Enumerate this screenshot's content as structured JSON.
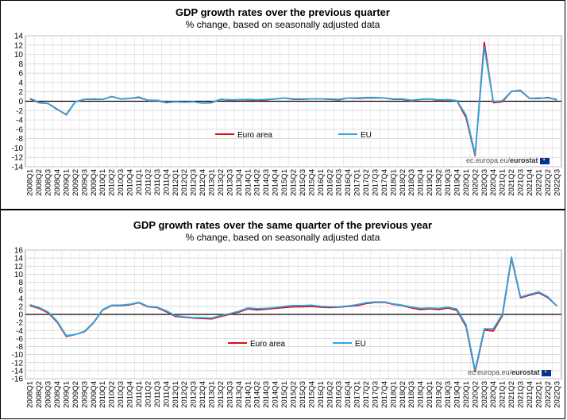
{
  "chart_data": [
    {
      "type": "line",
      "title": "GDP growth rates over the previous quarter",
      "subtitle": "% change, based on seasonally adjusted data",
      "ylim": [
        -14,
        14
      ],
      "yticks": [
        -14,
        -12,
        -10,
        -8,
        -6,
        -4,
        -2,
        0,
        2,
        4,
        6,
        8,
        10,
        12,
        14
      ],
      "grid": true,
      "legend_position": "center",
      "credit": "ec.europa.eu/",
      "credit_bold": "eurostat",
      "categories": [
        "2008Q1",
        "2008Q2",
        "2008Q3",
        "2008Q4",
        "2009Q1",
        "2009Q2",
        "2009Q3",
        "2009Q4",
        "2010Q1",
        "2010Q2",
        "2010Q3",
        "2010Q4",
        "2011Q1",
        "2011Q2",
        "2011Q3",
        "2011Q4",
        "2012Q1",
        "2012Q2",
        "2012Q3",
        "2012Q4",
        "2013Q1",
        "2013Q2",
        "2013Q3",
        "2013Q4",
        "2014Q1",
        "2014Q2",
        "2014Q3",
        "2014Q4",
        "2015Q1",
        "2015Q2",
        "2015Q3",
        "2015Q4",
        "2016Q1",
        "2016Q2",
        "2016Q3",
        "2016Q4",
        "2017Q1",
        "2017Q2",
        "2017Q3",
        "2017Q4",
        "2018Q1",
        "2018Q2",
        "2018Q3",
        "2018Q4",
        "2019Q1",
        "2019Q2",
        "2019Q3",
        "2019Q4",
        "2020Q1",
        "2020Q2",
        "2020Q3",
        "2020Q4",
        "2021Q1",
        "2021Q2",
        "2021Q3",
        "2021Q4",
        "2022Q1",
        "2022Q2",
        "2022Q3"
      ],
      "series": [
        {
          "name": "Euro area",
          "color": "#e30613",
          "values": [
            0.5,
            -0.3,
            -0.5,
            -1.7,
            -2.9,
            -0.1,
            0.4,
            0.4,
            0.4,
            1.0,
            0.5,
            0.6,
            0.8,
            0.2,
            0.1,
            -0.3,
            -0.1,
            -0.2,
            -0.1,
            -0.4,
            -0.3,
            0.4,
            0.2,
            0.3,
            0.3,
            0.2,
            0.3,
            0.5,
            0.7,
            0.4,
            0.4,
            0.5,
            0.5,
            0.4,
            0.3,
            0.7,
            0.6,
            0.7,
            0.7,
            0.7,
            0.4,
            0.4,
            0.1,
            0.4,
            0.5,
            0.2,
            0.3,
            0.1,
            -3.5,
            -11.6,
            12.6,
            -0.3,
            -0.1,
            2.1,
            2.3,
            0.6,
            0.6,
            0.8,
            0.3
          ]
        },
        {
          "name": "EU",
          "color": "#29a8e0",
          "values": [
            0.6,
            -0.2,
            -0.5,
            -1.8,
            -2.8,
            -0.1,
            0.4,
            0.5,
            0.4,
            1.0,
            0.5,
            0.6,
            0.9,
            0.2,
            0.2,
            -0.2,
            -0.1,
            -0.2,
            -0.1,
            -0.4,
            -0.2,
            0.4,
            0.3,
            0.3,
            0.4,
            0.3,
            0.4,
            0.5,
            0.7,
            0.5,
            0.5,
            0.5,
            0.5,
            0.5,
            0.4,
            0.7,
            0.7,
            0.8,
            0.8,
            0.7,
            0.5,
            0.5,
            0.2,
            0.4,
            0.5,
            0.3,
            0.3,
            0.1,
            -3.0,
            -11.3,
            11.6,
            -0.1,
            0.1,
            2.1,
            2.2,
            0.6,
            0.7,
            0.7,
            0.4
          ]
        }
      ]
    },
    {
      "type": "line",
      "title": "GDP growth rates over the same quarter of the previous year",
      "subtitle": "% change, based on seasonally adjusted data",
      "ylim": [
        -16,
        16
      ],
      "yticks": [
        -16,
        -14,
        -12,
        -10,
        -8,
        -6,
        -4,
        -2,
        0,
        2,
        4,
        6,
        8,
        10,
        12,
        14,
        16
      ],
      "grid": true,
      "legend_position": "center",
      "credit": "ec.europa.eu/",
      "credit_bold": "eurostat",
      "categories": [
        "2008Q1",
        "2008Q2",
        "2008Q3",
        "2008Q4",
        "2009Q1",
        "2009Q2",
        "2009Q3",
        "2009Q4",
        "2010Q1",
        "2010Q2",
        "2010Q3",
        "2010Q4",
        "2011Q1",
        "2011Q2",
        "2011Q3",
        "2011Q4",
        "2012Q1",
        "2012Q2",
        "2012Q3",
        "2012Q4",
        "2013Q1",
        "2013Q2",
        "2013Q3",
        "2013Q4",
        "2014Q1",
        "2014Q2",
        "2014Q3",
        "2014Q4",
        "2015Q1",
        "2015Q2",
        "2015Q3",
        "2015Q4",
        "2016Q1",
        "2016Q2",
        "2016Q3",
        "2016Q4",
        "2017Q1",
        "2017Q2",
        "2017Q3",
        "2017Q4",
        "2018Q1",
        "2018Q2",
        "2018Q3",
        "2018Q4",
        "2019Q1",
        "2019Q2",
        "2019Q3",
        "2019Q4",
        "2020Q1",
        "2020Q2",
        "2020Q3",
        "2020Q4",
        "2021Q1",
        "2021Q2",
        "2021Q3",
        "2021Q4",
        "2022Q1",
        "2022Q2",
        "2022Q3"
      ],
      "series": [
        {
          "name": "Euro area",
          "color": "#e30613",
          "values": [
            2.2,
            1.5,
            0.4,
            -1.9,
            -5.5,
            -5.0,
            -4.3,
            -2.1,
            1.1,
            2.2,
            2.2,
            2.4,
            2.9,
            1.9,
            1.7,
            0.7,
            -0.5,
            -0.7,
            -0.9,
            -1.0,
            -1.1,
            -0.5,
            0.0,
            0.6,
            1.4,
            1.1,
            1.3,
            1.5,
            1.7,
            1.9,
            1.9,
            2.0,
            1.8,
            1.7,
            1.8,
            2.0,
            2.2,
            2.7,
            3.0,
            3.0,
            2.5,
            2.2,
            1.6,
            1.2,
            1.4,
            1.2,
            1.6,
            1.0,
            -3.0,
            -14.3,
            -3.9,
            -4.1,
            -0.3,
            14.0,
            4.1,
            4.8,
            5.4,
            4.2,
            2.1
          ]
        },
        {
          "name": "EU",
          "color": "#29a8e0",
          "values": [
            2.4,
            1.7,
            0.6,
            -1.7,
            -5.3,
            -5.0,
            -4.2,
            -2.0,
            1.2,
            2.3,
            2.3,
            2.5,
            3.0,
            2.0,
            1.8,
            0.9,
            -0.3,
            -0.6,
            -0.8,
            -0.8,
            -0.9,
            -0.3,
            0.2,
            0.8,
            1.6,
            1.4,
            1.5,
            1.7,
            2.0,
            2.2,
            2.2,
            2.3,
            2.0,
            1.9,
            1.9,
            2.1,
            2.4,
            2.9,
            3.1,
            3.1,
            2.6,
            2.3,
            1.8,
            1.5,
            1.6,
            1.5,
            1.8,
            1.3,
            -2.6,
            -13.9,
            -3.6,
            -3.6,
            0.0,
            14.3,
            4.3,
            5.0,
            5.6,
            4.4,
            2.1
          ]
        }
      ]
    }
  ]
}
